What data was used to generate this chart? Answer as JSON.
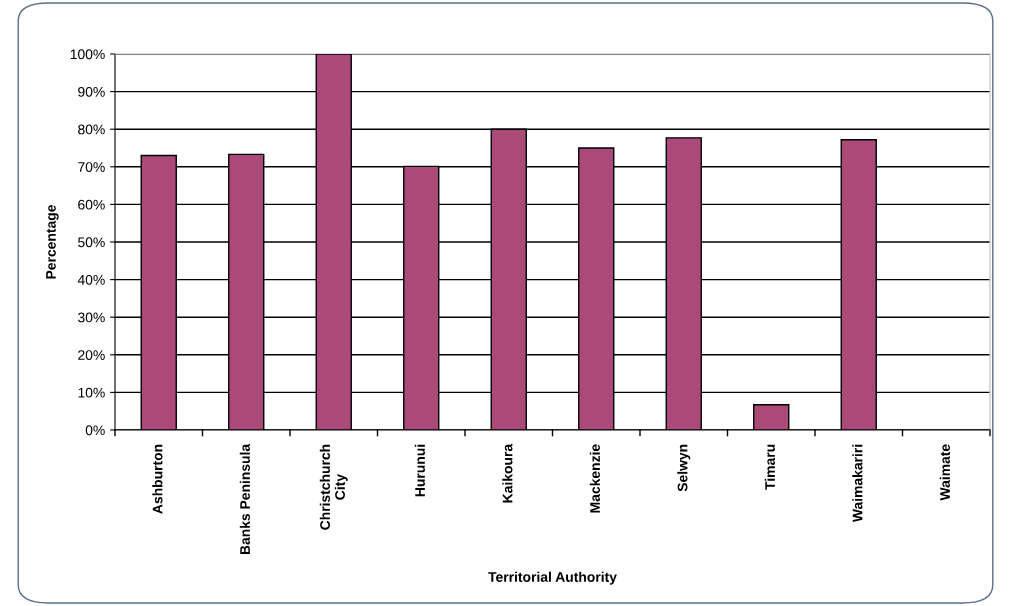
{
  "chart_data": {
    "type": "bar",
    "xlabel": "Territorial Authority",
    "ylabel": "Percentage",
    "categories": [
      "Ashburton",
      "Banks Peninsula",
      "Christchurch\nCity",
      "Hurunui",
      "Kaikoura",
      "Mackenzie",
      "Selwyn",
      "Timaru",
      "Waimakariri",
      "Waimate"
    ],
    "values": [
      73.0,
      73.3,
      100,
      70.1,
      80,
      75.0,
      77.7,
      6.7,
      77.2,
      null
    ],
    "color": "#ab4a78",
    "ylim": [
      0,
      100
    ],
    "yticks": [
      {
        "value": 0,
        "label": "0%"
      },
      {
        "value": 10,
        "label": "10%"
      },
      {
        "value": 20,
        "label": "20%"
      },
      {
        "value": 30,
        "label": "30%"
      },
      {
        "value": 40,
        "label": "40%"
      },
      {
        "value": 50,
        "label": "50%"
      },
      {
        "value": 60,
        "label": "60%"
      },
      {
        "value": 70,
        "label": "70%"
      },
      {
        "value": 80,
        "label": "80%"
      },
      {
        "value": 90,
        "label": "90%"
      },
      {
        "value": 100,
        "label": "100%"
      }
    ],
    "grid": "y",
    "legend": false
  }
}
